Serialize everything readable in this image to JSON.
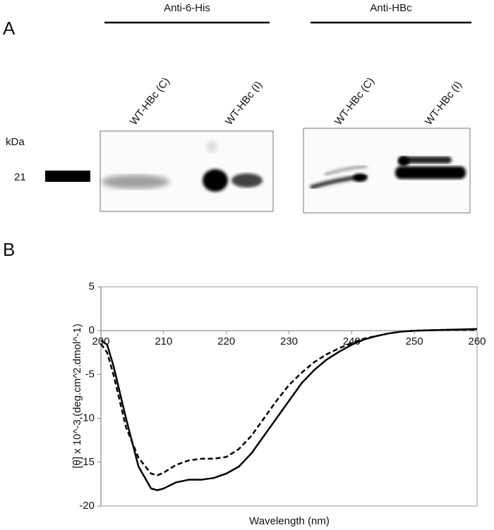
{
  "panel_a": {
    "label": "A",
    "groups": [
      "Anti-6-His",
      "Anti-HBc"
    ],
    "lanes": [
      "WT-HBc (C)",
      "WT-HBc (I)",
      "WT-HBc (C)",
      "WT-HBc (I)"
    ],
    "unit": "kDa",
    "marker": "21"
  },
  "chart_data": {
    "type": "line",
    "panel_label": "B",
    "x_label": "Wavelength (nm)",
    "y_label": "[θ] x 10^-3 (deg.cm^2.dmol^-1)",
    "x": [
      200,
      201,
      202,
      204,
      206,
      208,
      209,
      210,
      212,
      214,
      216,
      218,
      220,
      222,
      224,
      226,
      228,
      230,
      232,
      234,
      236,
      238,
      240,
      242,
      244,
      246,
      248,
      250,
      255,
      260
    ],
    "series": [
      {
        "color": "#000000",
        "style": "solid",
        "values": [
          -1.1,
          -1.6,
          -4,
          -10,
          -15.5,
          -18,
          -18.2,
          -18,
          -17.3,
          -17,
          -17,
          -16.8,
          -16.3,
          -15.5,
          -14,
          -12,
          -10,
          -8,
          -6,
          -4.5,
          -3.3,
          -2.4,
          -1.6,
          -1,
          -0.6,
          -0.3,
          -0.1,
          0,
          0.1,
          0.2
        ]
      },
      {
        "color": "#000000",
        "style": "dashed",
        "values": [
          -1.5,
          -2.5,
          -5,
          -11,
          -14.5,
          -16.3,
          -16.5,
          -16.2,
          -15.3,
          -14.8,
          -14.6,
          -14.6,
          -14.4,
          -13.5,
          -12,
          -10,
          -8,
          -6.2,
          -4.8,
          -3.6,
          -2.7,
          -2,
          -1.4,
          -0.9,
          -0.6,
          -0.3,
          -0.1,
          0,
          0.1,
          0.1
        ]
      }
    ],
    "xlim": [
      200,
      260
    ],
    "xticks": [
      200,
      210,
      220,
      230,
      240,
      250,
      260
    ],
    "ylim": [
      -20,
      5
    ],
    "yticks": [
      5,
      0,
      -5,
      -10,
      -15,
      -20
    ],
    "grid": false
  }
}
